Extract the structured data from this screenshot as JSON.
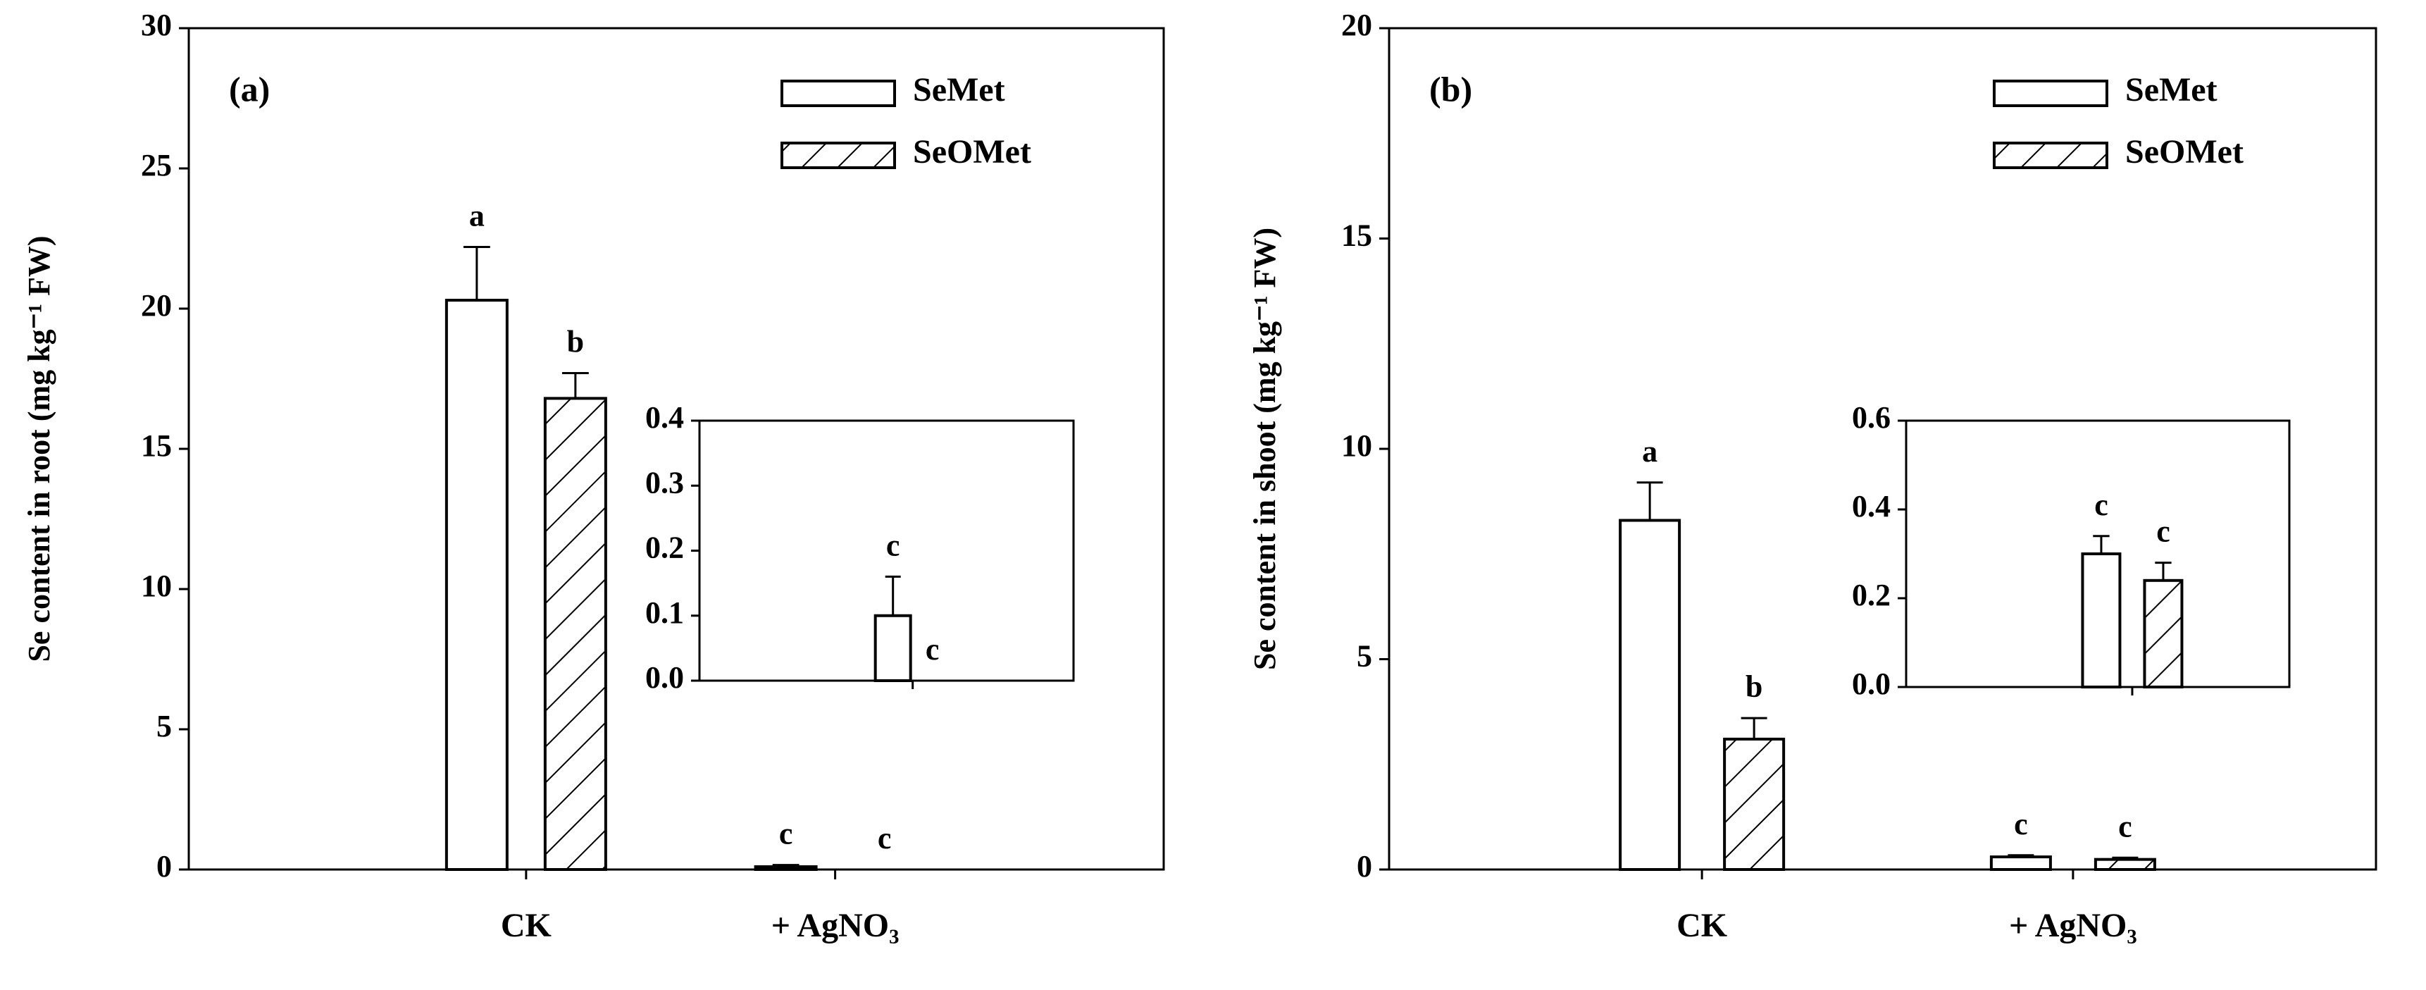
{
  "chart_data": [
    {
      "type": "bar",
      "panel_label": "(a)",
      "ylabel": "Se content in root (mg kg⁻¹ FW)",
      "categories": [
        "CK",
        "+ AgNO₃"
      ],
      "series": [
        {
          "name": "SeMet",
          "color": "#ffffff",
          "values": [
            20.3,
            0.1
          ],
          "errors": [
            1.9,
            0.06
          ],
          "letters": [
            "a",
            "c"
          ]
        },
        {
          "name": "SeOMet",
          "color": "#ffffff",
          "hatch": "/",
          "values": [
            16.8,
            0.0
          ],
          "errors": [
            0.9,
            0.0
          ],
          "letters": [
            "b",
            "c"
          ]
        }
      ],
      "ylim": [
        0,
        30
      ],
      "yticks": [
        0,
        5,
        10,
        15,
        20,
        25,
        30
      ],
      "legend": "upper right",
      "inset": {
        "ylim": [
          0,
          0.4
        ],
        "yticks": [
          {
            "value": 0,
            "label": "0.0"
          },
          0.1,
          0.2,
          0.3,
          0.4
        ]
      }
    },
    {
      "type": "bar",
      "panel_label": "(b)",
      "ylabel": "Se content in shoot (mg kg⁻¹ FW)",
      "categories": [
        "CK",
        "+ AgNO₃"
      ],
      "series": [
        {
          "name": "SeMet",
          "color": "#ffffff",
          "values": [
            8.3,
            0.3
          ],
          "errors": [
            0.9,
            0.04
          ],
          "letters": [
            "a",
            "c"
          ]
        },
        {
          "name": "SeOMet",
          "color": "#ffffff",
          "hatch": "/",
          "values": [
            3.1,
            0.24
          ],
          "errors": [
            0.5,
            0.04
          ],
          "letters": [
            "b",
            "c"
          ]
        }
      ],
      "ylim": [
        0,
        20
      ],
      "yticks": [
        0,
        5,
        10,
        15,
        20
      ],
      "legend": "upper right",
      "inset": {
        "ylim": [
          0,
          0.6
        ],
        "yticks": [
          {
            "value": 0,
            "label": "0.0"
          },
          0.2,
          0.4,
          0.6
        ]
      }
    }
  ]
}
